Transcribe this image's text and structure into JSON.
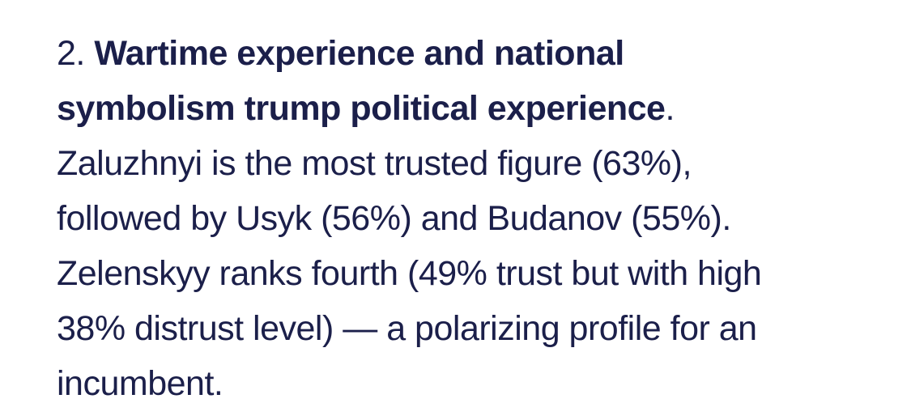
{
  "paragraph": {
    "number": "2. ",
    "bold_lines": [
      "Wartime experience and national",
      "symbolism trump political experience"
    ],
    "bold_suffix": ".",
    "body_lines": [
      "Zaluzhnyi is the most trusted figure (63%),",
      "followed by Usyk (56%) and Budanov (55%).",
      "Zelenskyy ranks fourth (49% trust but with high",
      "38% distrust level) — a polarizing profile for an",
      "incumbent."
    ]
  }
}
